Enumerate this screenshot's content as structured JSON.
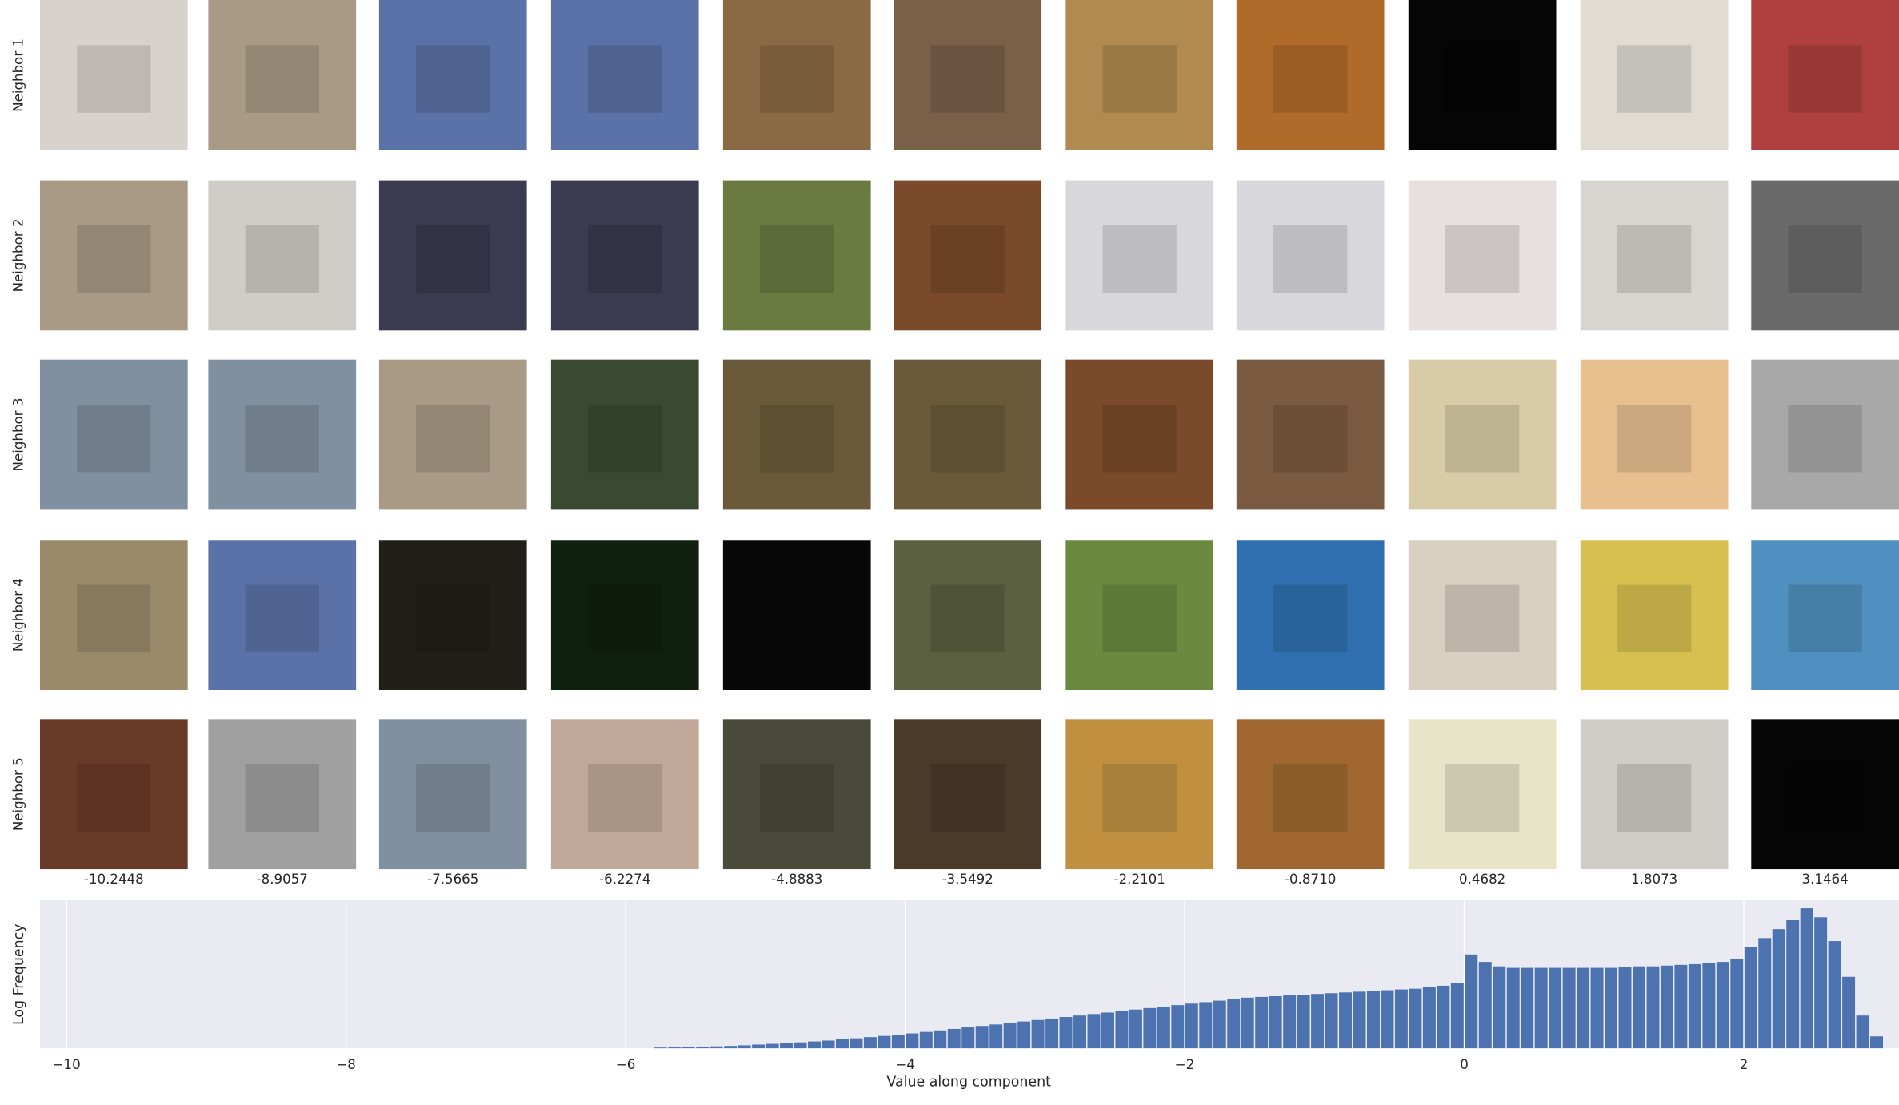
{
  "image_grid": {
    "row_labels": [
      "Neighbor 1",
      "Neighbor 2",
      "Neighbor 3",
      "Neighbor 4",
      "Neighbor 5"
    ],
    "column_values": [
      "-10.2448",
      "-8.9057",
      "-7.5665",
      "-6.2274",
      "-4.8883",
      "-3.5492",
      "-2.2101",
      "-0.8710",
      "0.4682",
      "1.8073",
      "3.1464"
    ]
  },
  "chart_data": {
    "type": "histogram",
    "xlabel": "Value along component",
    "ylabel": "Log Frequency",
    "color": "#4c72b0",
    "grid": true,
    "xlim": [
      -10.19,
      3.11
    ],
    "ylim": [
      0,
      1
    ],
    "xticks": [
      {
        "value": -10,
        "label": "−10"
      },
      {
        "value": -8,
        "label": "−8"
      },
      {
        "value": -6,
        "label": "−6"
      },
      {
        "value": -4,
        "label": "−4"
      },
      {
        "value": -2,
        "label": "−2"
      },
      0,
      2
    ],
    "bins": [
      -5.8,
      -5.7,
      -5.6,
      -5.5,
      -5.4,
      -5.3,
      -5.2,
      -5.1,
      -5.0,
      -4.9,
      -4.8,
      -4.7,
      -4.6,
      -4.5,
      -4.4,
      -4.3,
      -4.2,
      -4.1,
      -4.0,
      -3.9,
      -3.8,
      -3.7,
      -3.6,
      -3.5,
      -3.4,
      -3.3,
      -3.2,
      -3.1,
      -3.0,
      -2.9,
      -2.8,
      -2.7,
      -2.6,
      -2.5,
      -2.4,
      -2.3,
      -2.2,
      -2.1,
      -2.0,
      -1.9,
      -1.8,
      -1.7,
      -1.6,
      -1.5,
      -1.4,
      -1.3,
      -1.2,
      -1.1,
      -1.0,
      -0.9,
      -0.8,
      -0.7,
      -0.6,
      -0.5,
      -0.4,
      -0.3,
      -0.2,
      -0.1,
      0.0,
      0.1,
      0.2,
      0.3,
      0.4,
      0.5,
      0.6,
      0.7,
      0.8,
      0.9,
      1.0,
      1.1,
      1.2,
      1.3,
      1.4,
      1.5,
      1.6,
      1.7,
      1.8,
      1.9,
      2.0,
      2.1,
      2.2,
      2.3,
      2.4,
      2.5,
      2.6,
      2.7,
      2.8,
      2.9,
      3.0
    ],
    "values": [
      0.005,
      0.006,
      0.008,
      0.01,
      0.013,
      0.016,
      0.02,
      0.025,
      0.03,
      0.035,
      0.04,
      0.046,
      0.052,
      0.06,
      0.067,
      0.075,
      0.083,
      0.092,
      0.1,
      0.11,
      0.12,
      0.13,
      0.14,
      0.15,
      0.16,
      0.17,
      0.18,
      0.19,
      0.2,
      0.21,
      0.22,
      0.23,
      0.24,
      0.25,
      0.26,
      0.27,
      0.28,
      0.29,
      0.3,
      0.31,
      0.32,
      0.33,
      0.34,
      0.345,
      0.35,
      0.355,
      0.36,
      0.365,
      0.37,
      0.375,
      0.38,
      0.385,
      0.39,
      0.395,
      0.4,
      0.41,
      0.42,
      0.44,
      0.63,
      0.58,
      0.55,
      0.54,
      0.54,
      0.54,
      0.54,
      0.54,
      0.54,
      0.54,
      0.54,
      0.545,
      0.55,
      0.55,
      0.555,
      0.56,
      0.565,
      0.57,
      0.58,
      0.6,
      0.68,
      0.74,
      0.8,
      0.86,
      0.94,
      0.88,
      0.72,
      0.48,
      0.22,
      0.08
    ]
  }
}
